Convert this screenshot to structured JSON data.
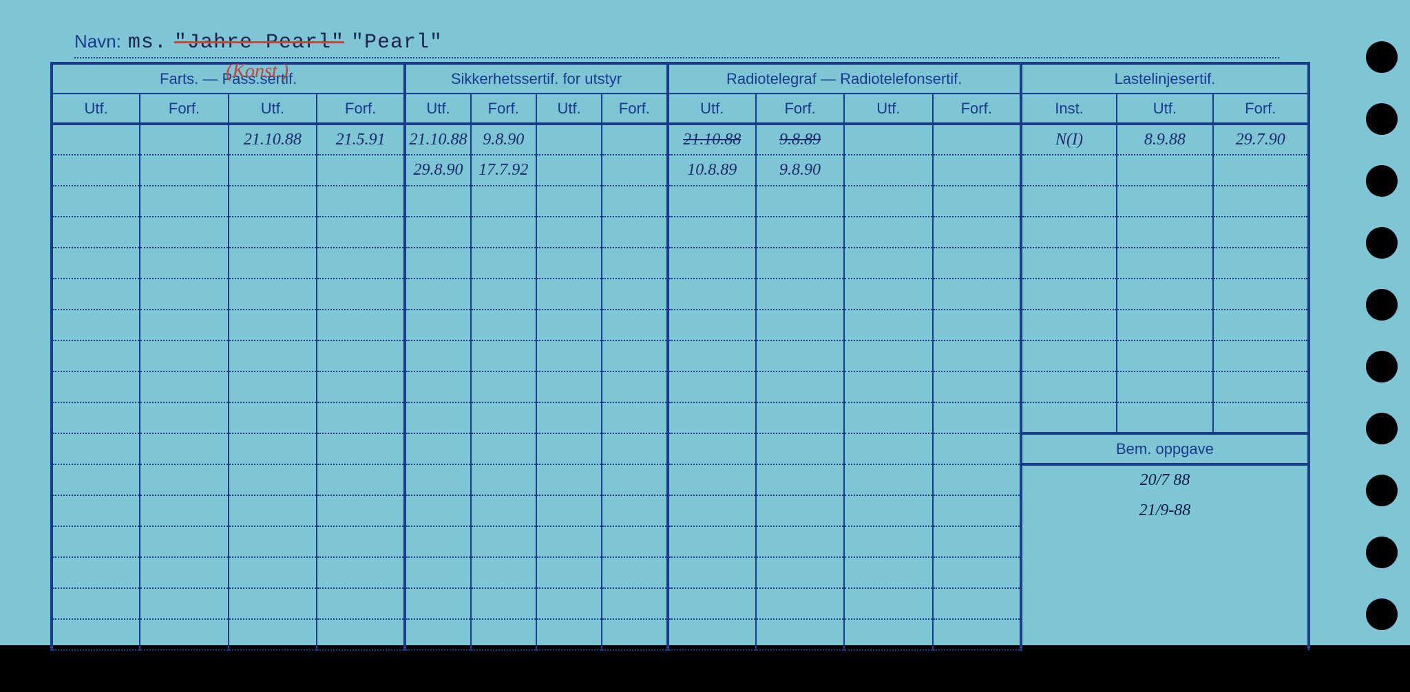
{
  "background_color": "#7ec5d6",
  "line_color": "#1a3a8a",
  "text_color": "#1a3a8a",
  "hand_color": "#1a2a6a",
  "red_color": "#c4453a",
  "navn": {
    "label": "Navn:",
    "prefix": "ms.",
    "struck": "\"Jahre Pearl\"",
    "name": "\"Pearl\""
  },
  "annotation_konst": "(Konst.)",
  "groups": [
    {
      "label": "Farts. — Pass.sertif.",
      "cols": [
        "Utf.",
        "Forf.",
        "Utf.",
        "Forf."
      ]
    },
    {
      "label": "Sikkerhetssertif. for utstyr",
      "cols": [
        "Utf.",
        "Forf.",
        "Utf.",
        "Forf."
      ]
    },
    {
      "label": "Radiotelegraf — Radiotelefonsertif.",
      "cols": [
        "Utf.",
        "Forf.",
        "Utf.",
        "Forf."
      ]
    },
    {
      "label": "Lastelinjesertif.",
      "cols": [
        "Inst.",
        "Utf.",
        "Forf."
      ]
    }
  ],
  "rows": [
    {
      "c2": "21.10.88",
      "c3": "21.5.91",
      "c4": "21.10.88",
      "c5": "9.8.90",
      "c8": "21.10.88",
      "c8_strike": true,
      "c9": "9.8.89",
      "c9_strike": true,
      "c12": "N(I)",
      "c13": "8.9.88",
      "c14": "29.7.90"
    },
    {
      "c4": "29.8.90",
      "c5": "17.7.92",
      "c8": "10.8.89",
      "c9": "9.8.90"
    }
  ],
  "bem": {
    "label": "Bem. oppgave",
    "entries": [
      "20/7 88",
      "21/9-88"
    ]
  },
  "num_body_rows": 17,
  "num_holes": 11
}
